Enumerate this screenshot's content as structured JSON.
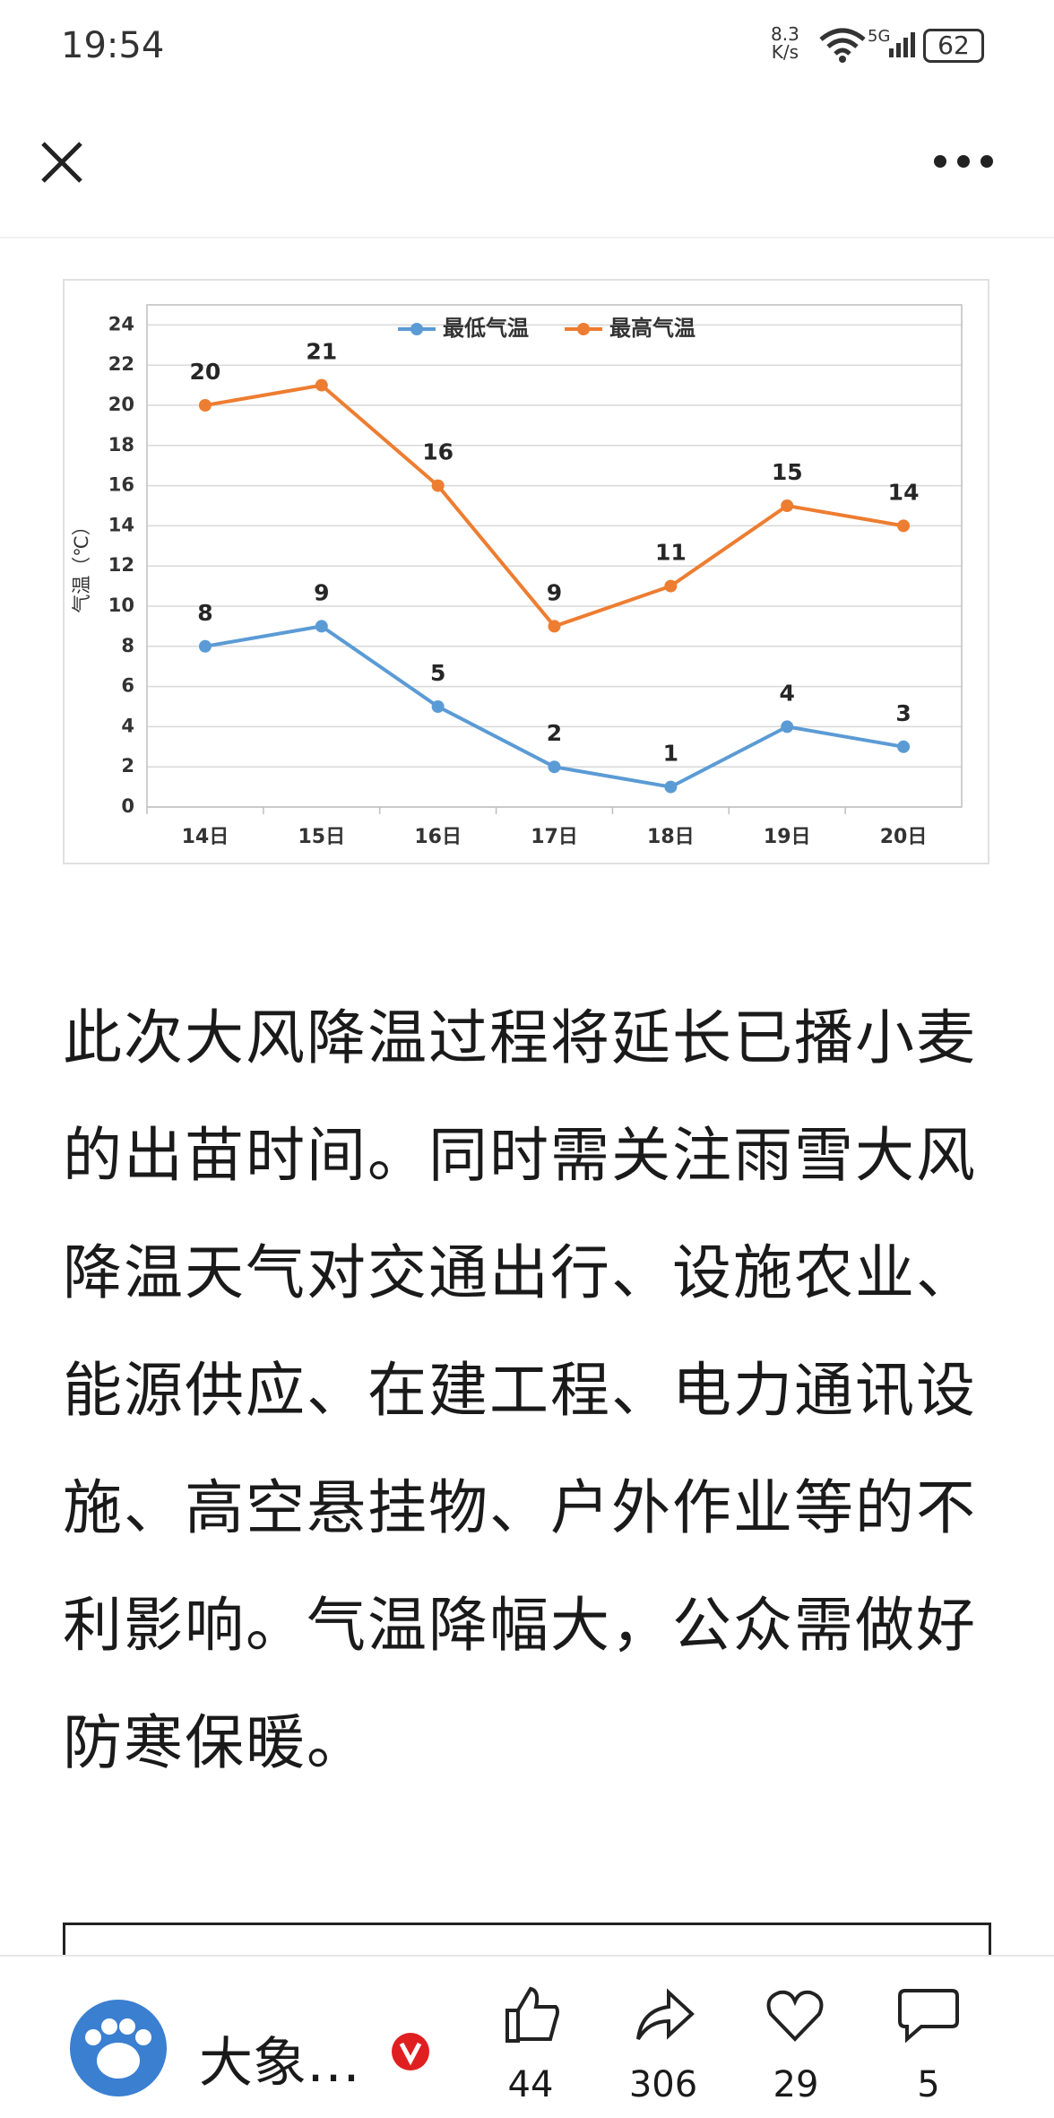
{
  "status_bar": {
    "time": "19:54",
    "speed": "8.3",
    "speed_unit": "K/s",
    "network": "5G",
    "battery": "62"
  },
  "chart_data": {
    "type": "line",
    "ylabel": "气温（℃）",
    "categories": [
      "14日",
      "15日",
      "16日",
      "17日",
      "18日",
      "19日",
      "20日"
    ],
    "series": [
      {
        "name": "最低气温",
        "color": "#5b9bd5",
        "values": [
          8,
          9,
          5,
          2,
          1,
          4,
          3
        ]
      },
      {
        "name": "最高气温",
        "color": "#ed7d31",
        "values": [
          20,
          21,
          16,
          9,
          11,
          15,
          14
        ]
      }
    ],
    "ylim": [
      0,
      25
    ],
    "yticks": [
      0,
      2,
      4,
      6,
      8,
      10,
      12,
      14,
      16,
      18,
      20,
      22,
      24
    ],
    "grid": true,
    "legend": "top",
    "data_labels": true
  },
  "article": {
    "lines": [
      "此次大风降温过程将延长已播小麦",
      "的出苗时间。同时需关注雨雪大风",
      "降温天气对交通出行、设施农业、",
      "能源供应、在建工程、电力通讯设",
      "施、高空悬挂物、户外作业等的不",
      "利影响。气温降幅大，公众需做好",
      "防寒保暖。"
    ]
  },
  "footer": {
    "author": "大象…",
    "likes": "44",
    "shares": "306",
    "favorites": "29",
    "comments": "5"
  }
}
